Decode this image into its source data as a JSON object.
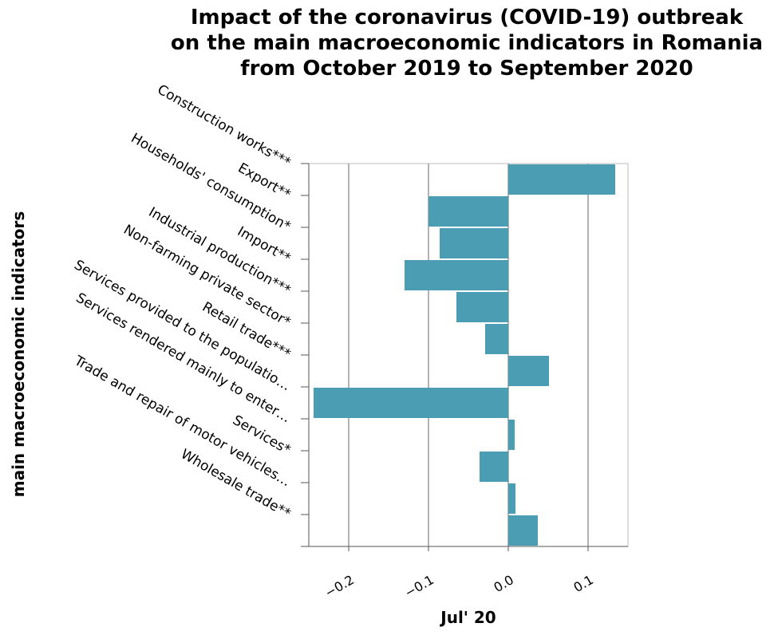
{
  "chart_data": {
    "type": "bar",
    "orientation": "horizontal",
    "title_lines": [
      "Impact of the coronavirus (COVID-19) outbreak",
      "on the main macroeconomic indicators in Romania",
      "from October 2019 to September 2020"
    ],
    "xlabel": "Jul' 20",
    "ylabel": "main macroeconomic indicators",
    "xlim": [
      -0.25,
      0.15
    ],
    "xticks": [
      -0.2,
      -0.1,
      0.0,
      0.1
    ],
    "xtick_labels": [
      "−0.2",
      "−0.1",
      "0.0",
      "0.1"
    ],
    "grid": "vertical",
    "categories": [
      "Construction works***",
      "Export**",
      "Households' consumption*",
      "Import**",
      "Industrial production***",
      "Non-farming private sector*",
      "Retail trade***",
      "Services provided to the populatio…",
      "Services rendered mainly to enter…",
      "Services*",
      "Trade and repair of motor vehicles…",
      "Wholesale trade**"
    ],
    "values": [
      0.134,
      -0.1,
      -0.086,
      -0.13,
      -0.065,
      -0.029,
      0.051,
      -0.244,
      0.008,
      -0.036,
      0.009,
      0.037
    ],
    "bar_color": "#4a9db3"
  }
}
